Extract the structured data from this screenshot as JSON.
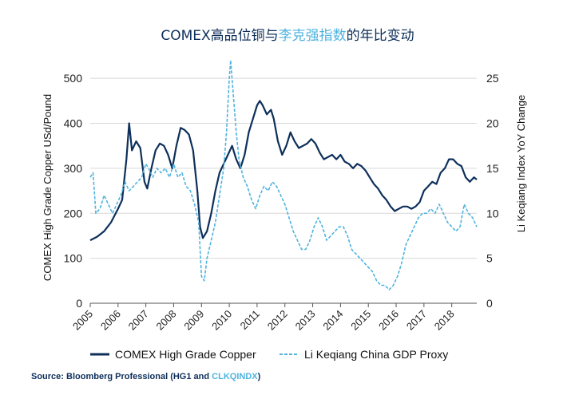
{
  "title": {
    "part1": "COMEX高品位铜与",
    "part2": "李克强指数",
    "part3": "的年比变动"
  },
  "source": {
    "prefix": "Source: Bloomberg Professional (HG1 and ",
    "link": "CLKQINDX",
    "suffix": ")"
  },
  "colors": {
    "copper": "#0d2f5a",
    "likeqiang": "#4fb3e0",
    "grid": "#d8d8d8",
    "text": "#222222"
  },
  "chart_data": {
    "type": "line",
    "xlabel": "",
    "ylabel_left": "COMEX High Grade Copper USd/Pound",
    "ylabel_right": "Li Keqiang Index YoY Change",
    "x_ticks": [
      "2005",
      "2006",
      "2007",
      "2008",
      "2009",
      "2010",
      "2011",
      "2012",
      "2013",
      "2014",
      "2015",
      "2016",
      "2017",
      "2018"
    ],
    "xlim": [
      2005.0,
      2018.9
    ],
    "ylim_left": [
      0,
      550
    ],
    "yticks_left": [
      0,
      100,
      200,
      300,
      400,
      500
    ],
    "ylim_right": [
      0,
      27.5
    ],
    "yticks_right": [
      0,
      5,
      10,
      15,
      20,
      25
    ],
    "grid": "horizontal",
    "legend_position": "bottom",
    "series": [
      {
        "name": "COMEX High Grade Copper",
        "axis": "left",
        "style": "solid",
        "x": [
          2005.0,
          2005.25,
          2005.5,
          2005.75,
          2006.0,
          2006.15,
          2006.3,
          2006.4,
          2006.5,
          2006.65,
          2006.8,
          2006.95,
          2007.05,
          2007.2,
          2007.35,
          2007.5,
          2007.65,
          2007.8,
          2007.95,
          2008.1,
          2008.25,
          2008.4,
          2008.55,
          2008.7,
          2008.85,
          2008.95,
          2009.05,
          2009.2,
          2009.35,
          2009.5,
          2009.65,
          2009.8,
          2009.95,
          2010.1,
          2010.25,
          2010.4,
          2010.55,
          2010.7,
          2010.85,
          2011.0,
          2011.1,
          2011.2,
          2011.35,
          2011.5,
          2011.6,
          2011.75,
          2011.9,
          2012.05,
          2012.2,
          2012.35,
          2012.5,
          2012.65,
          2012.8,
          2012.95,
          2013.1,
          2013.25,
          2013.4,
          2013.55,
          2013.7,
          2013.85,
          2014.0,
          2014.15,
          2014.3,
          2014.45,
          2014.6,
          2014.75,
          2014.9,
          2015.05,
          2015.2,
          2015.35,
          2015.5,
          2015.65,
          2015.8,
          2015.95,
          2016.1,
          2016.25,
          2016.4,
          2016.55,
          2016.7,
          2016.85,
          2017.0,
          2017.15,
          2017.3,
          2017.45,
          2017.6,
          2017.75,
          2017.9,
          2018.05,
          2018.2,
          2018.35,
          2018.5,
          2018.65,
          2018.8,
          2018.9
        ],
        "y": [
          140,
          148,
          160,
          180,
          210,
          230,
          320,
          400,
          340,
          360,
          345,
          270,
          255,
          300,
          340,
          355,
          350,
          330,
          300,
          350,
          390,
          385,
          375,
          340,
          250,
          170,
          145,
          160,
          200,
          250,
          290,
          310,
          330,
          350,
          320,
          300,
          330,
          380,
          410,
          440,
          450,
          440,
          420,
          430,
          410,
          360,
          330,
          350,
          380,
          360,
          345,
          350,
          355,
          365,
          355,
          335,
          320,
          325,
          330,
          320,
          330,
          315,
          310,
          300,
          310,
          305,
          295,
          280,
          265,
          255,
          240,
          230,
          215,
          205,
          210,
          215,
          215,
          210,
          215,
          225,
          250,
          260,
          270,
          265,
          290,
          300,
          320,
          320,
          310,
          305,
          280,
          270,
          280,
          275
        ]
      },
      {
        "name": "Li Keqiang China GDP Proxy",
        "axis": "right",
        "style": "dashed",
        "x": [
          2005.0,
          2005.1,
          2005.2,
          2005.35,
          2005.5,
          2005.65,
          2005.8,
          2005.95,
          2006.1,
          2006.25,
          2006.4,
          2006.55,
          2006.7,
          2006.85,
          2007.0,
          2007.1,
          2007.25,
          2007.4,
          2007.55,
          2007.7,
          2007.85,
          2008.0,
          2008.15,
          2008.3,
          2008.45,
          2008.6,
          2008.75,
          2008.9,
          2009.0,
          2009.1,
          2009.2,
          2009.35,
          2009.5,
          2009.65,
          2009.8,
          2009.9,
          2010.0,
          2010.05,
          2010.15,
          2010.25,
          2010.35,
          2010.5,
          2010.65,
          2010.8,
          2010.95,
          2011.1,
          2011.25,
          2011.4,
          2011.55,
          2011.7,
          2011.85,
          2012.0,
          2012.15,
          2012.3,
          2012.45,
          2012.6,
          2012.75,
          2012.9,
          2013.05,
          2013.2,
          2013.35,
          2013.5,
          2013.65,
          2013.8,
          2013.95,
          2014.1,
          2014.25,
          2014.4,
          2014.55,
          2014.7,
          2014.85,
          2015.0,
          2015.15,
          2015.3,
          2015.45,
          2015.6,
          2015.75,
          2015.9,
          2016.05,
          2016.2,
          2016.35,
          2016.5,
          2016.65,
          2016.8,
          2016.95,
          2017.1,
          2017.25,
          2017.4,
          2017.55,
          2017.7,
          2017.85,
          2018.0,
          2018.15,
          2018.3,
          2018.45,
          2018.6,
          2018.75,
          2018.9
        ],
        "y": [
          14,
          14.5,
          10,
          10.5,
          12,
          11,
          10,
          11,
          12,
          13.5,
          12.5,
          13,
          13.5,
          14,
          15.5,
          15,
          14,
          15,
          14.5,
          15,
          14,
          15.5,
          14,
          14.5,
          13,
          12.5,
          11,
          9,
          3,
          2.5,
          5,
          7,
          9,
          12,
          15,
          19,
          25,
          27,
          23,
          19,
          16,
          14,
          13,
          11.5,
          10.5,
          12,
          13,
          12.5,
          13.5,
          13,
          12,
          11,
          9.5,
          8,
          7,
          6,
          6,
          7,
          8.5,
          9.5,
          8.5,
          7,
          7.5,
          8,
          8.5,
          8.5,
          7.5,
          6,
          5.5,
          5,
          4.5,
          4,
          3.5,
          2.5,
          2,
          2,
          1.5,
          2,
          3,
          4.5,
          6.5,
          7.5,
          8.5,
          9.5,
          10,
          10,
          10.5,
          10,
          11,
          10,
          9,
          8.5,
          8,
          8.5,
          11,
          10,
          9.5,
          8.5
        ]
      }
    ]
  }
}
